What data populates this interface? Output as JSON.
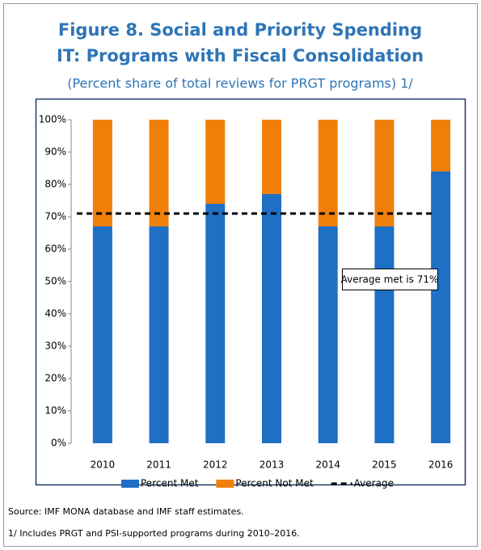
{
  "chart_data": {
    "type": "stacked_bar",
    "title": "Figure 8. Social and Priority Spending",
    "title_line2": "IT: Programs with Fiscal Consolidation",
    "subtitle": "(Percent share of total reviews for PRGT programs) 1/",
    "categories": [
      "2010",
      "2011",
      "2012",
      "2013",
      "2014",
      "2015",
      "2016"
    ],
    "series": [
      {
        "name": "Percent Met",
        "color": "#1f6fc5",
        "values": [
          67,
          67,
          74,
          77,
          67,
          67,
          84
        ]
      },
      {
        "name": "Percent Not Met",
        "color": "#f07f09",
        "values": [
          33,
          33,
          26,
          23,
          33,
          33,
          16
        ]
      }
    ],
    "reference_line": {
      "name": "Average",
      "value": 71,
      "color": "#000000"
    },
    "annotation": "Average met is 71%",
    "ylim": [
      0,
      100
    ],
    "yticks": [
      {
        "value": 0,
        "label": "0%"
      },
      {
        "value": 10,
        "label": "10%"
      },
      {
        "value": 20,
        "label": "20%"
      },
      {
        "value": 30,
        "label": "30%"
      },
      {
        "value": 40,
        "label": "40%"
      },
      {
        "value": 50,
        "label": "50%"
      },
      {
        "value": 60,
        "label": "60%"
      },
      {
        "value": 70,
        "label": "70%"
      },
      {
        "value": 80,
        "label": "80%"
      },
      {
        "value": 90,
        "label": "90%"
      },
      {
        "value": 100,
        "label": "100%"
      }
    ],
    "source": "Source: IMF MONA database and IMF staff estimates.",
    "note": "1/ Includes PRGT and PSI-supported programs during 2010–2016."
  }
}
